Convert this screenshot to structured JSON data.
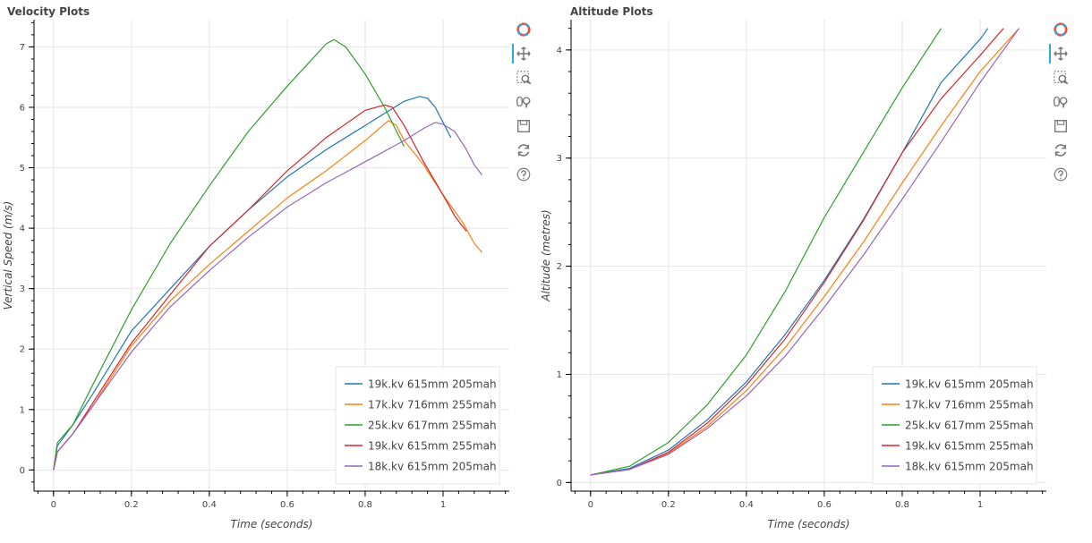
{
  "toolbar": {
    "tools": [
      "bokeh-logo-icon",
      "pan-icon",
      "box-zoom-icon",
      "wheel-zoom-icon",
      "save-icon",
      "reset-icon",
      "help-icon"
    ]
  },
  "legend_colors": [
    "#1f77b4",
    "#ff7f0e",
    "#2ca02c",
    "#d62728",
    "#9467bd"
  ],
  "chart_data": [
    {
      "type": "line",
      "title": "Velocity Plots",
      "xlabel": "Time (seconds)",
      "ylabel": "Vertical Speed (m/s)",
      "xlim": [
        -0.05,
        1.17
      ],
      "ylim": [
        -0.35,
        7.45
      ],
      "xticks": [
        0,
        0.2,
        0.4,
        0.6,
        0.8,
        1
      ],
      "yticks": [
        0,
        1,
        2,
        3,
        4,
        5,
        6,
        7
      ],
      "grid": true,
      "legend_position": "bottom-right",
      "series": [
        {
          "name": "19k.kv 615mm 205mah",
          "color": "#1f77b4",
          "x": [
            0,
            0.01,
            0.05,
            0.1,
            0.2,
            0.3,
            0.4,
            0.5,
            0.6,
            0.7,
            0.8,
            0.85,
            0.9,
            0.94,
            0.96,
            0.98,
            1.0,
            1.02
          ],
          "y": [
            0,
            0.4,
            0.75,
            1.25,
            2.3,
            3.0,
            3.7,
            4.3,
            4.85,
            5.3,
            5.7,
            5.9,
            6.1,
            6.18,
            6.15,
            6.0,
            5.75,
            5.5
          ]
        },
        {
          "name": "17k.kv 716mm 255mah",
          "color": "#ff7f0e",
          "x": [
            0,
            0.01,
            0.05,
            0.1,
            0.2,
            0.3,
            0.4,
            0.5,
            0.6,
            0.7,
            0.8,
            0.86,
            0.88,
            0.9,
            0.95,
            1.0,
            1.05,
            1.08,
            1.1
          ],
          "y": [
            0,
            0.3,
            0.6,
            1.05,
            2.05,
            2.8,
            3.4,
            3.95,
            4.5,
            4.95,
            5.45,
            5.78,
            5.7,
            5.45,
            5.05,
            4.55,
            4.1,
            3.75,
            3.6
          ]
        },
        {
          "name": "25k.kv 617mm 255mah",
          "color": "#2ca02c",
          "x": [
            0,
            0.01,
            0.05,
            0.1,
            0.2,
            0.3,
            0.4,
            0.5,
            0.6,
            0.65,
            0.7,
            0.72,
            0.75,
            0.8,
            0.85,
            0.9
          ],
          "y": [
            0,
            0.45,
            0.75,
            1.4,
            2.65,
            3.75,
            4.7,
            5.6,
            6.35,
            6.7,
            7.05,
            7.12,
            7.0,
            6.55,
            6.0,
            5.35
          ]
        },
        {
          "name": "19k.kv 615mm 255mah",
          "color": "#d62728",
          "x": [
            0,
            0.01,
            0.05,
            0.1,
            0.2,
            0.3,
            0.4,
            0.5,
            0.6,
            0.7,
            0.8,
            0.85,
            0.87,
            0.9,
            0.95,
            1.0,
            1.03,
            1.06
          ],
          "y": [
            0,
            0.3,
            0.6,
            1.1,
            2.1,
            2.9,
            3.7,
            4.3,
            4.95,
            5.5,
            5.95,
            6.04,
            6.0,
            5.7,
            5.1,
            4.55,
            4.2,
            3.95
          ]
        },
        {
          "name": "18k.kv 615mm 205mah",
          "color": "#9467bd",
          "x": [
            0,
            0.01,
            0.05,
            0.1,
            0.2,
            0.3,
            0.4,
            0.5,
            0.6,
            0.7,
            0.8,
            0.9,
            0.95,
            0.98,
            1.0,
            1.03,
            1.06,
            1.08,
            1.1
          ],
          "y": [
            0,
            0.3,
            0.6,
            1.05,
            1.95,
            2.7,
            3.3,
            3.85,
            4.35,
            4.75,
            5.1,
            5.45,
            5.65,
            5.75,
            5.72,
            5.6,
            5.3,
            5.05,
            4.88
          ]
        }
      ]
    },
    {
      "type": "line",
      "title": "Altitude Plots",
      "xlabel": "Time (seconds)",
      "ylabel": "Altitude (metres)",
      "xlim": [
        -0.05,
        1.17
      ],
      "ylim": [
        -0.08,
        4.28
      ],
      "xticks": [
        0,
        0.2,
        0.4,
        0.6,
        0.8,
        1
      ],
      "yticks": [
        0,
        1,
        2,
        3,
        4
      ],
      "grid": true,
      "legend_position": "bottom-right",
      "series": [
        {
          "name": "19k.kv 615mm 205mah",
          "color": "#1f77b4",
          "x": [
            0,
            0.1,
            0.2,
            0.3,
            0.4,
            0.5,
            0.6,
            0.7,
            0.8,
            0.9,
            1.0,
            1.02
          ],
          "y": [
            0.07,
            0.13,
            0.3,
            0.58,
            0.93,
            1.37,
            1.87,
            2.43,
            3.05,
            3.7,
            4.1,
            4.2
          ]
        },
        {
          "name": "17k.kv 716mm 255mah",
          "color": "#ff7f0e",
          "x": [
            0,
            0.1,
            0.2,
            0.3,
            0.4,
            0.5,
            0.6,
            0.7,
            0.8,
            0.9,
            1.0,
            1.1
          ],
          "y": [
            0.07,
            0.12,
            0.27,
            0.52,
            0.85,
            1.25,
            1.72,
            2.22,
            2.77,
            3.3,
            3.8,
            4.2
          ]
        },
        {
          "name": "25k.kv 617mm 255mah",
          "color": "#2ca02c",
          "x": [
            0,
            0.1,
            0.2,
            0.3,
            0.4,
            0.5,
            0.6,
            0.7,
            0.8,
            0.9
          ],
          "y": [
            0.07,
            0.15,
            0.37,
            0.72,
            1.18,
            1.77,
            2.45,
            3.05,
            3.65,
            4.2
          ]
        },
        {
          "name": "19k.kv 615mm 255mah",
          "color": "#d62728",
          "x": [
            0,
            0.1,
            0.2,
            0.3,
            0.4,
            0.5,
            0.6,
            0.7,
            0.8,
            0.9,
            1.0,
            1.06
          ],
          "y": [
            0.07,
            0.12,
            0.28,
            0.55,
            0.9,
            1.33,
            1.85,
            2.42,
            3.05,
            3.55,
            3.95,
            4.2
          ]
        },
        {
          "name": "18k.kv 615mm 205mah",
          "color": "#9467bd",
          "x": [
            0,
            0.1,
            0.2,
            0.3,
            0.4,
            0.5,
            0.6,
            0.7,
            0.8,
            0.9,
            1.0,
            1.1
          ],
          "y": [
            0.07,
            0.12,
            0.26,
            0.5,
            0.8,
            1.17,
            1.62,
            2.1,
            2.62,
            3.15,
            3.7,
            4.2
          ]
        }
      ]
    }
  ]
}
